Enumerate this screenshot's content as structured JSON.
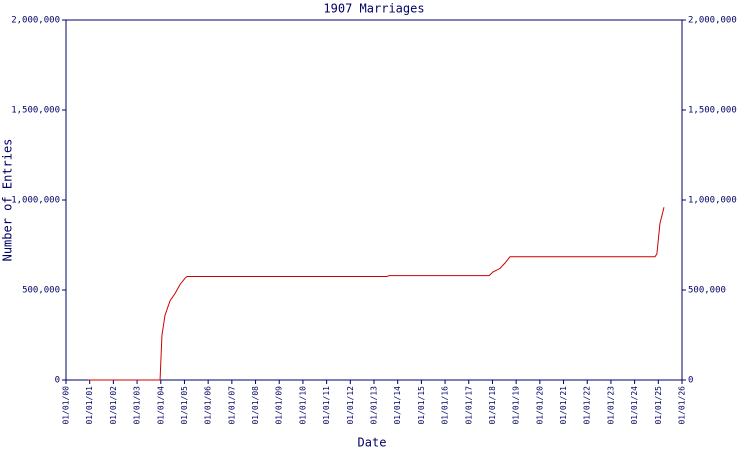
{
  "chart_data": {
    "type": "line",
    "title": "1907 Marriages",
    "x_label": "Date",
    "y_label": "Number of Entries",
    "x": [
      0.93,
      3.88,
      3.97,
      4.05,
      4.18,
      4.39,
      4.6,
      4.81,
      5.02,
      5.11,
      13.55,
      13.63,
      17.86,
      18.02,
      18.32,
      18.53,
      18.74,
      24.86,
      24.94,
      25.07,
      25.24
    ],
    "series": [
      {
        "name": "Entries",
        "color": "#cc0000",
        "values": [
          0,
          0,
          0,
          250000,
          360000,
          440000,
          480000,
          530000,
          565000,
          575000,
          575000,
          580000,
          580000,
          600000,
          620000,
          650000,
          685000,
          685000,
          700000,
          870000,
          960000
        ]
      }
    ],
    "xlim": [
      0,
      26
    ],
    "xticks": [
      {
        "value": 0,
        "label": "01/01/00"
      },
      {
        "value": 1,
        "label": "01/01/01"
      },
      {
        "value": 2,
        "label": "01/01/02"
      },
      {
        "value": 3,
        "label": "01/01/03"
      },
      {
        "value": 4,
        "label": "01/01/04"
      },
      {
        "value": 5,
        "label": "01/01/05"
      },
      {
        "value": 6,
        "label": "01/01/06"
      },
      {
        "value": 7,
        "label": "01/01/07"
      },
      {
        "value": 8,
        "label": "01/01/08"
      },
      {
        "value": 9,
        "label": "01/01/09"
      },
      {
        "value": 10,
        "label": "01/01/10"
      },
      {
        "value": 11,
        "label": "01/01/11"
      },
      {
        "value": 12,
        "label": "01/01/12"
      },
      {
        "value": 13,
        "label": "01/01/13"
      },
      {
        "value": 14,
        "label": "01/01/14"
      },
      {
        "value": 15,
        "label": "01/01/15"
      },
      {
        "value": 16,
        "label": "01/01/16"
      },
      {
        "value": 17,
        "label": "01/01/17"
      },
      {
        "value": 18,
        "label": "01/01/18"
      },
      {
        "value": 19,
        "label": "01/01/19"
      },
      {
        "value": 20,
        "label": "01/01/20"
      },
      {
        "value": 21,
        "label": "01/01/21"
      },
      {
        "value": 22,
        "label": "01/01/22"
      },
      {
        "value": 23,
        "label": "01/01/23"
      },
      {
        "value": 24,
        "label": "01/01/24"
      },
      {
        "value": 25,
        "label": "01/01/25"
      },
      {
        "value": 26,
        "label": "01/01/26"
      }
    ],
    "ylim": [
      0,
      2000000
    ],
    "yticks": [
      0,
      {
        "value": 500000,
        "label": "500,000"
      },
      {
        "value": 1000000,
        "label": "1,000,000"
      },
      {
        "value": 1500000,
        "label": "1,500,000"
      },
      {
        "value": 2000000,
        "label": "2,000,000"
      }
    ],
    "y2lim": [
      0,
      2000000
    ],
    "y2ticks": [
      0,
      {
        "value": 500000,
        "label": "500,000"
      },
      {
        "value": 1000000,
        "label": "1,000,000"
      },
      {
        "value": 1500000,
        "label": "1,500,000"
      },
      {
        "value": 2000000,
        "label": "2,000,000"
      }
    ],
    "axis_color": "#000066"
  }
}
